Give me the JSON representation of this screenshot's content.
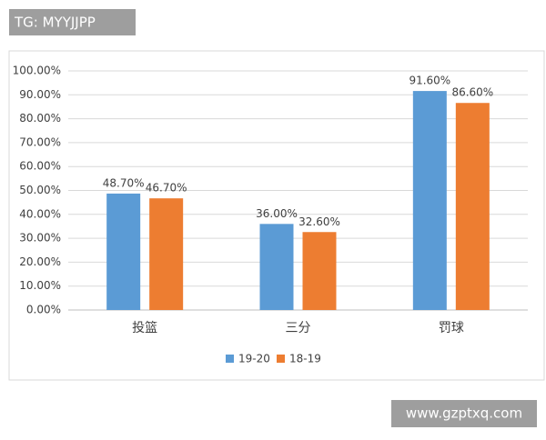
{
  "watermarks": [
    "TG: MYYJJPP",
    "www.gzptxq.com"
  ],
  "chart_data": {
    "type": "bar",
    "categories": [
      "投篮",
      "三分",
      "罚球"
    ],
    "series": [
      {
        "name": "19-20",
        "color": "#5b9bd5",
        "values": [
          48.7,
          36.0,
          91.6
        ],
        "value_labels": [
          "48.70%",
          "36.00%",
          "91.60%"
        ]
      },
      {
        "name": "18-19",
        "color": "#ed7d31",
        "values": [
          46.7,
          32.6,
          86.6
        ],
        "value_labels": [
          "46.70%",
          "32.60%",
          "86.60%"
        ]
      }
    ],
    "ylim": [
      0,
      100
    ],
    "yticks": [
      {
        "value": 0,
        "label": "0.00%"
      },
      {
        "value": 10,
        "label": "10.00%"
      },
      {
        "value": 20,
        "label": "20.00%"
      },
      {
        "value": 30,
        "label": "30.00%"
      },
      {
        "value": 40,
        "label": "40.00%"
      },
      {
        "value": 50,
        "label": "50.00%"
      },
      {
        "value": 60,
        "label": "60.00%"
      },
      {
        "value": 70,
        "label": "70.00%"
      },
      {
        "value": 80,
        "label": "80.00%"
      },
      {
        "value": 90,
        "label": "90.00%"
      },
      {
        "value": 100,
        "label": "100.00%"
      }
    ],
    "grid": true,
    "legend": "bottom"
  }
}
